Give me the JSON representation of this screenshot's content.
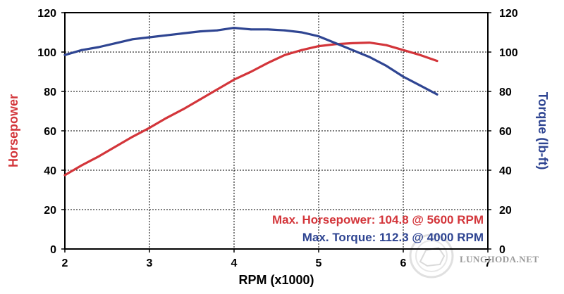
{
  "chart_data": {
    "type": "line",
    "xlabel": "RPM (x1000)",
    "ylabel_left": "Horsepower",
    "ylabel_right": "Torque (lb-ft)",
    "xlim": [
      2,
      7
    ],
    "ylim_left": [
      0,
      120
    ],
    "ylim_right": [
      0,
      120
    ],
    "x_ticks": [
      "2",
      "3",
      "4",
      "5",
      "6",
      "7"
    ],
    "y_ticks": [
      "0",
      "20",
      "40",
      "60",
      "80",
      "100",
      "120"
    ],
    "grid": true,
    "series": [
      {
        "name": "Horsepower",
        "axis": "left",
        "color": "#d3353a",
        "x": [
          2.0,
          2.2,
          2.4,
          2.6,
          2.8,
          3.0,
          3.2,
          3.4,
          3.6,
          3.8,
          4.0,
          4.2,
          4.4,
          4.6,
          4.8,
          5.0,
          5.2,
          5.4,
          5.6,
          5.8,
          6.0,
          6.2,
          6.4
        ],
        "values": [
          37.5,
          42.5,
          47,
          52,
          57,
          61.5,
          66.5,
          71,
          76,
          81,
          86,
          90,
          94.5,
          98.5,
          101,
          103,
          104,
          104.5,
          104.8,
          103.5,
          101,
          98.5,
          95.5
        ]
      },
      {
        "name": "Torque",
        "axis": "right",
        "color": "#2f4592",
        "x": [
          2.0,
          2.2,
          2.4,
          2.6,
          2.8,
          3.0,
          3.2,
          3.4,
          3.6,
          3.8,
          4.0,
          4.2,
          4.4,
          4.6,
          4.8,
          5.0,
          5.2,
          5.4,
          5.6,
          5.8,
          6.0,
          6.2,
          6.4
        ],
        "values": [
          98.5,
          101,
          102.5,
          104.5,
          106.5,
          107.5,
          108.5,
          109.5,
          110.5,
          111,
          112.3,
          111.5,
          111.5,
          111,
          110,
          108,
          104.5,
          101,
          97.5,
          93,
          87.5,
          83,
          78.5
        ]
      }
    ],
    "annotations": [
      {
        "text": "Max. Horsepower: 104.8 @ 5600 RPM",
        "color": "#d3353a"
      },
      {
        "text": "Max. Torque: 112.3 @ 4000 RPM",
        "color": "#2f4592"
      }
    ],
    "watermark": "LUNGHODA.NET"
  }
}
